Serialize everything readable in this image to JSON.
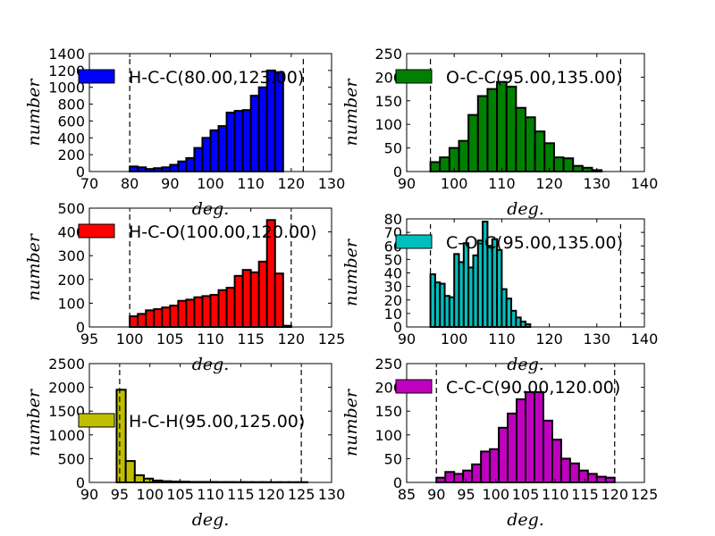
{
  "chart_data": [
    {
      "type": "bar",
      "xlabel": "deg.",
      "ylabel": "number",
      "xlim": [
        70,
        130
      ],
      "ylim": [
        0,
        1400
      ],
      "xticks": [
        70,
        80,
        90,
        100,
        110,
        120,
        130
      ],
      "yticks": [
        0,
        200,
        400,
        600,
        800,
        1000,
        1200,
        1400
      ],
      "bin_width": 2,
      "bin_start": 80,
      "values": [
        60,
        50,
        30,
        40,
        50,
        80,
        120,
        160,
        280,
        400,
        490,
        540,
        700,
        720,
        730,
        900,
        1000,
        1200,
        1180
      ],
      "bounds": [
        80,
        123
      ],
      "color": "#0000ff",
      "legend": {
        "label": "H-C-C(80.00,123.00)",
        "position": "top-left"
      }
    },
    {
      "type": "bar",
      "xlabel": "deg.",
      "ylabel": "number",
      "xlim": [
        90,
        140
      ],
      "ylim": [
        0,
        250
      ],
      "xticks": [
        90,
        100,
        110,
        120,
        130,
        140
      ],
      "yticks": [
        0,
        50,
        100,
        150,
        200,
        250
      ],
      "bin_width": 2,
      "bin_start": 95,
      "values": [
        20,
        30,
        50,
        65,
        120,
        160,
        175,
        190,
        180,
        135,
        115,
        85,
        60,
        30,
        28,
        12,
        8,
        3
      ],
      "bounds": [
        95,
        135
      ],
      "color": "#008000",
      "legend": {
        "label": "O-C-C(95.00,135.00)",
        "position": "top-left"
      }
    },
    {
      "type": "bar",
      "xlabel": "deg.",
      "ylabel": "number",
      "xlim": [
        95,
        125
      ],
      "ylim": [
        0,
        500
      ],
      "xticks": [
        95,
        100,
        105,
        110,
        115,
        120,
        125
      ],
      "yticks": [
        0,
        100,
        200,
        300,
        400,
        500
      ],
      "bin_width": 1,
      "bin_start": 100,
      "values": [
        45,
        55,
        70,
        75,
        82,
        90,
        110,
        115,
        125,
        130,
        135,
        155,
        165,
        215,
        240,
        230,
        275,
        450,
        225,
        5
      ],
      "bounds": [
        100,
        120
      ],
      "color": "#ff0000",
      "legend": {
        "label": "H-C-O(100.00,120.00)",
        "position": "top-left"
      }
    },
    {
      "type": "bar",
      "xlabel": "deg.",
      "ylabel": "number",
      "xlim": [
        90,
        140
      ],
      "ylim": [
        0,
        80
      ],
      "xticks": [
        90,
        100,
        110,
        120,
        130,
        140
      ],
      "yticks": [
        0,
        10,
        20,
        30,
        40,
        50,
        60,
        70,
        80
      ],
      "bin_width": 1,
      "bin_start": 95,
      "values": [
        39,
        33,
        32,
        23,
        22,
        54,
        48,
        62,
        44,
        53,
        64,
        78,
        60,
        65,
        57,
        28,
        21,
        12,
        7,
        4,
        2
      ],
      "bounds": [
        95,
        135
      ],
      "color": "#00bfbf",
      "legend": {
        "label": "C-O-C(95.00,135.00)",
        "position": "top-left"
      }
    },
    {
      "type": "bar",
      "xlabel": "deg.",
      "ylabel": "number",
      "xlim": [
        90,
        130
      ],
      "ylim": [
        0,
        2500
      ],
      "xticks": [
        90,
        95,
        100,
        105,
        110,
        115,
        120,
        125,
        130
      ],
      "yticks": [
        0,
        500,
        1000,
        1500,
        2000,
        2500
      ],
      "bin_width": 1.5,
      "bin_start": 94.5,
      "values": [
        1950,
        450,
        150,
        80,
        40,
        25,
        18,
        15,
        10,
        10,
        10,
        8,
        8,
        7,
        7,
        6,
        6,
        5,
        5,
        5,
        5
      ],
      "bounds": [
        95,
        125
      ],
      "color": "#bfbf00",
      "legend": {
        "label": "H-C-H(95.00,125.00)",
        "position": "middle-left"
      }
    },
    {
      "type": "bar",
      "xlabel": "deg.",
      "ylabel": "number",
      "xlim": [
        85,
        125
      ],
      "ylim": [
        0,
        250
      ],
      "xticks": [
        85,
        90,
        95,
        100,
        105,
        110,
        115,
        120,
        125
      ],
      "yticks": [
        0,
        50,
        100,
        150,
        200,
        250
      ],
      "bin_width": 1.5,
      "bin_start": 90,
      "values": [
        10,
        22,
        18,
        25,
        38,
        65,
        70,
        115,
        145,
        175,
        190,
        190,
        130,
        90,
        50,
        40,
        25,
        18,
        12,
        10
      ],
      "bounds": [
        90,
        120
      ],
      "color": "#bf00bf",
      "legend": {
        "label": "C-C-C(90.00,120.00)",
        "position": "top-left"
      }
    }
  ]
}
